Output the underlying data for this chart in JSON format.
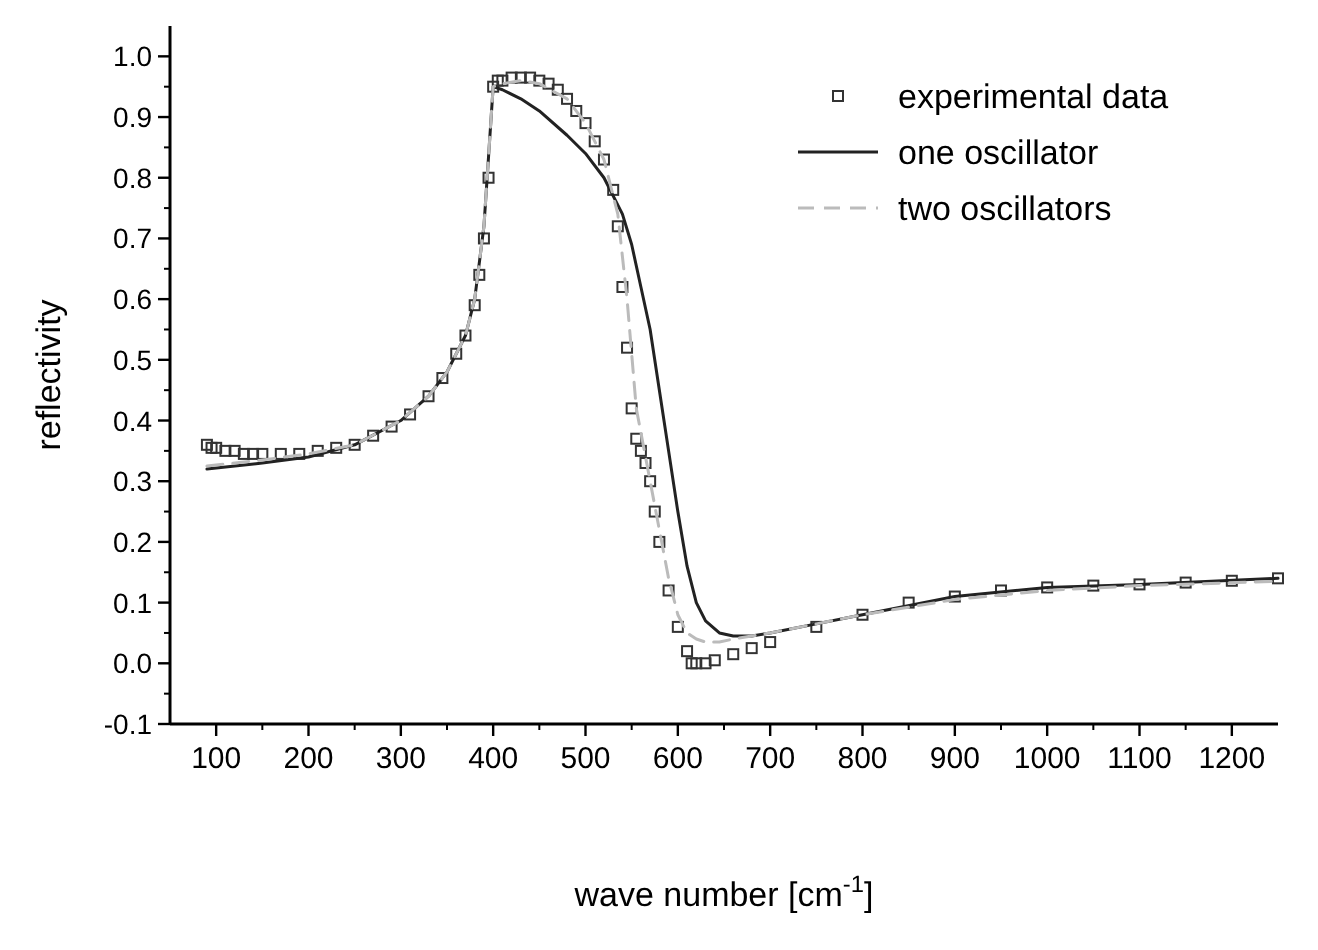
{
  "chart_data": {
    "type": "line",
    "xlabel": "wave number [cm$^{-1}$]",
    "ylabel": "reflectivity",
    "xlim": [
      50,
      1250
    ],
    "xticks": [
      100,
      200,
      300,
      400,
      500,
      600,
      700,
      800,
      900,
      1000,
      1100,
      1200
    ],
    "ylim": [
      -0.1,
      1.05
    ],
    "yticks": [
      -0.1,
      {
        "value": 0,
        "label": "0.0"
      },
      0.1,
      0.2,
      0.3,
      0.4,
      0.5,
      0.6,
      0.7,
      0.8,
      0.9,
      {
        "value": 1,
        "label": "1.0"
      }
    ],
    "grid": false,
    "legend": "top right",
    "series": [
      {
        "name": "experimental data",
        "type": "scatter",
        "marker": "square",
        "color": "#333333",
        "x": [
          90,
          95,
          100,
          110,
          120,
          130,
          140,
          150,
          170,
          190,
          210,
          230,
          250,
          270,
          290,
          310,
          330,
          345,
          360,
          370,
          380,
          385,
          390,
          395,
          400,
          405,
          410,
          420,
          430,
          440,
          450,
          460,
          470,
          480,
          490,
          500,
          510,
          520,
          530,
          535,
          540,
          545,
          550,
          555,
          560,
          565,
          570,
          575,
          580,
          590,
          600,
          610,
          615,
          620,
          630,
          640,
          660,
          680,
          700,
          750,
          800,
          850,
          900,
          950,
          1000,
          1050,
          1100,
          1150,
          1200,
          1250
        ],
        "values": [
          0.36,
          0.355,
          0.355,
          0.35,
          0.35,
          0.345,
          0.345,
          0.345,
          0.345,
          0.345,
          0.35,
          0.355,
          0.36,
          0.375,
          0.39,
          0.41,
          0.44,
          0.47,
          0.51,
          0.54,
          0.59,
          0.64,
          0.7,
          0.8,
          0.95,
          0.96,
          0.96,
          0.965,
          0.965,
          0.965,
          0.96,
          0.955,
          0.945,
          0.93,
          0.91,
          0.89,
          0.86,
          0.83,
          0.78,
          0.72,
          0.62,
          0.52,
          0.42,
          0.37,
          0.35,
          0.33,
          0.3,
          0.25,
          0.2,
          0.12,
          0.06,
          0.02,
          0.0,
          0.0,
          0.0,
          0.005,
          0.015,
          0.025,
          0.035,
          0.06,
          0.08,
          0.1,
          0.11,
          0.12,
          0.125,
          0.128,
          0.13,
          0.133,
          0.136,
          0.14
        ]
      },
      {
        "name": "one oscillator",
        "line_style": "solid",
        "color": "#222222",
        "x": [
          90,
          150,
          200,
          250,
          300,
          330,
          350,
          370,
          380,
          390,
          400,
          410,
          430,
          450,
          480,
          500,
          520,
          540,
          550,
          560,
          570,
          580,
          590,
          600,
          610,
          620,
          630,
          645,
          660,
          680,
          700,
          750,
          800,
          900,
          1000,
          1100,
          1250
        ],
        "values": [
          0.32,
          0.33,
          0.34,
          0.36,
          0.4,
          0.44,
          0.48,
          0.54,
          0.6,
          0.72,
          0.95,
          0.945,
          0.93,
          0.91,
          0.87,
          0.84,
          0.8,
          0.74,
          0.69,
          0.62,
          0.55,
          0.45,
          0.35,
          0.25,
          0.16,
          0.1,
          0.07,
          0.05,
          0.045,
          0.045,
          0.05,
          0.065,
          0.08,
          0.11,
          0.125,
          0.13,
          0.14
        ]
      },
      {
        "name": "two oscillators",
        "line_style": "dashed",
        "color": "#bbbbbb",
        "x": [
          90,
          150,
          200,
          250,
          300,
          330,
          350,
          370,
          380,
          390,
          400,
          410,
          430,
          450,
          480,
          500,
          520,
          535,
          545,
          555,
          565,
          580,
          590,
          600,
          610,
          620,
          630,
          645,
          660,
          680,
          700,
          750,
          800,
          900,
          1000,
          1100,
          1250
        ],
        "values": [
          0.325,
          0.335,
          0.345,
          0.36,
          0.4,
          0.44,
          0.48,
          0.54,
          0.6,
          0.72,
          0.95,
          0.955,
          0.96,
          0.955,
          0.93,
          0.89,
          0.83,
          0.74,
          0.6,
          0.42,
          0.34,
          0.22,
          0.14,
          0.08,
          0.05,
          0.04,
          0.035,
          0.035,
          0.04,
          0.045,
          0.05,
          0.065,
          0.08,
          0.105,
          0.12,
          0.128,
          0.135
        ]
      }
    ]
  }
}
